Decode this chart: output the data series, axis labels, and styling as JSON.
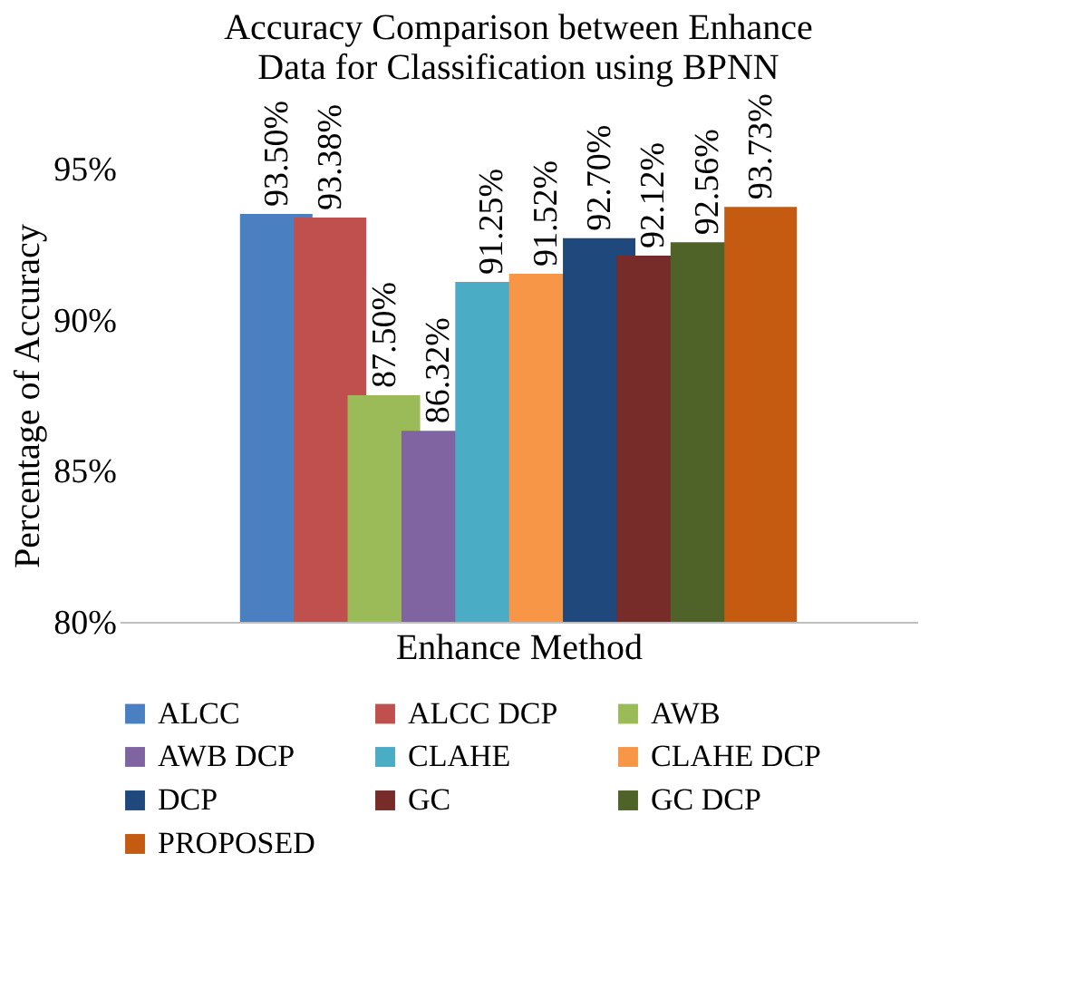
{
  "chart_data": {
    "type": "bar",
    "title": "Accuracy Comparison between Enhance Data for Classification using BPNN",
    "xlabel": "Enhance Method",
    "ylabel": "Percentage of Accuracy",
    "categories": [
      null
    ],
    "series": [
      {
        "name": "ALCC",
        "color": "#4a7fc1",
        "values": [
          93.5
        ],
        "value_labels": [
          "93.50%"
        ]
      },
      {
        "name": "ALCC DCP",
        "color": "#c0504d",
        "values": [
          93.38
        ],
        "value_labels": [
          "93.38%"
        ]
      },
      {
        "name": "AWB",
        "color": "#9bbb59",
        "values": [
          87.5
        ],
        "value_labels": [
          "87.50%"
        ]
      },
      {
        "name": "AWB DCP",
        "color": "#8064a2",
        "values": [
          86.32
        ],
        "value_labels": [
          "86.32%"
        ]
      },
      {
        "name": "CLAHE",
        "color": "#4bacc6",
        "values": [
          91.25
        ],
        "value_labels": [
          "91.25%"
        ]
      },
      {
        "name": "CLAHE DCP",
        "color": "#f79646",
        "values": [
          91.52
        ],
        "value_labels": [
          "91.52%"
        ]
      },
      {
        "name": "DCP",
        "color": "#1f497d",
        "values": [
          92.7
        ],
        "value_labels": [
          "92.70%"
        ]
      },
      {
        "name": "GC",
        "color": "#772c2a",
        "values": [
          92.12
        ],
        "value_labels": [
          "92.12%"
        ]
      },
      {
        "name": "GC DCP",
        "color": "#4f6228",
        "values": [
          92.56
        ],
        "value_labels": [
          "92.56%"
        ]
      },
      {
        "name": "PROPOSED",
        "color": "#c55a11",
        "values": [
          93.73
        ],
        "value_labels": [
          "93.73%"
        ]
      }
    ],
    "ylim": [
      80,
      95
    ],
    "yticks": [
      {
        "value": 80,
        "label": "80%"
      },
      {
        "value": 85,
        "label": "85%"
      },
      {
        "value": 90,
        "label": "90%"
      },
      {
        "value": 95,
        "label": "95%"
      }
    ],
    "grid": false,
    "legend": "bottom"
  }
}
